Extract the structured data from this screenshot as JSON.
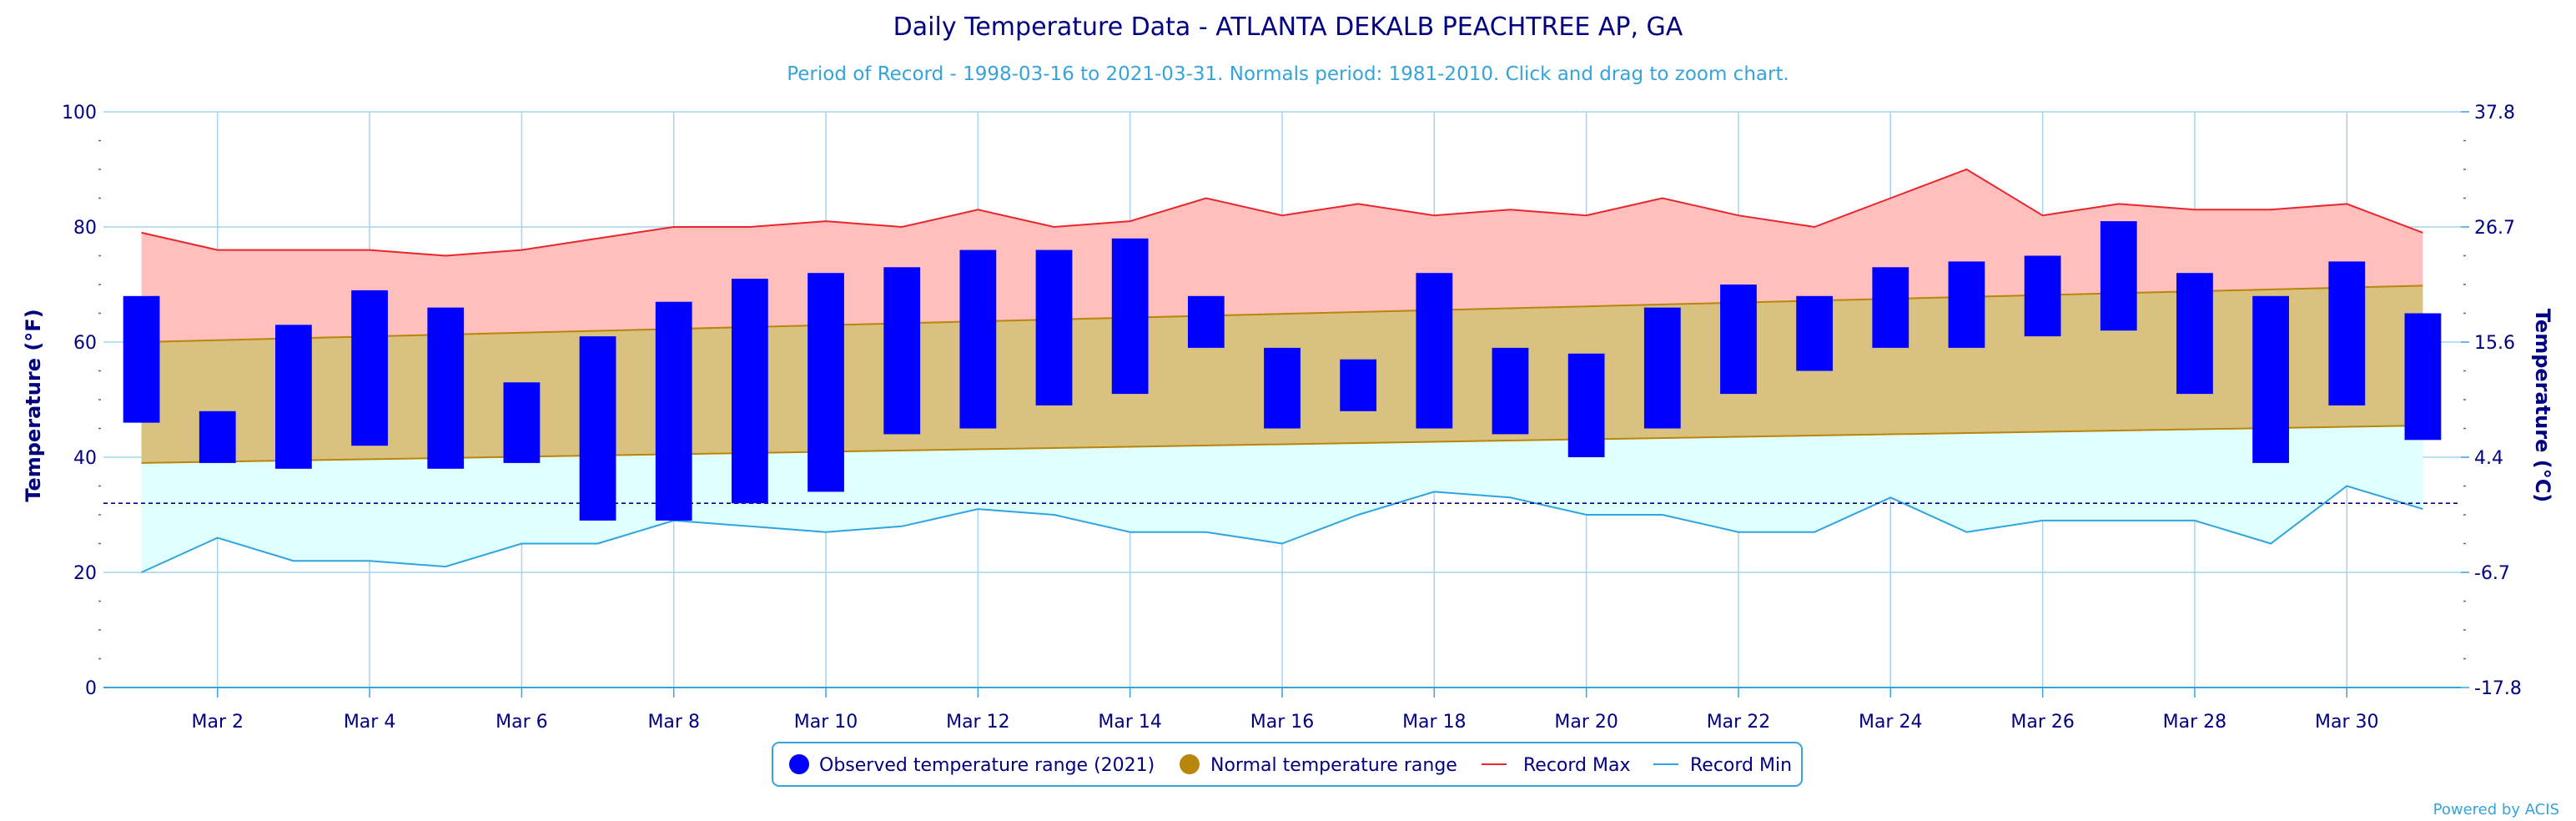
{
  "chart_data": {
    "type": "bar",
    "title": "Daily Temperature Data - ATLANTA DEKALB PEACHTREE AP, GA",
    "subtitle": "Period of Record - 1998-03-16 to 2021-03-31. Normals period: 1981-2010. Click and drag to zoom chart.",
    "ylabel": "Temperature (°F)",
    "ylabel_right": "Temperature (°C)",
    "ylim": [
      0,
      100
    ],
    "y_ticks": [
      "0",
      "20",
      "40",
      "60",
      "80",
      "100"
    ],
    "y_ticks_right": [
      "-17.8",
      "-6.7",
      "4.4",
      "15.6",
      "26.7",
      "37.8"
    ],
    "x_ticks": [
      "Mar 2",
      "Mar 4",
      "Mar 6",
      "Mar 8",
      "Mar 10",
      "Mar 12",
      "Mar 14",
      "Mar 16",
      "Mar 18",
      "Mar 20",
      "Mar 22",
      "Mar 24",
      "Mar 26",
      "Mar 28",
      "Mar 30"
    ],
    "x_tick_days": [
      2,
      4,
      6,
      8,
      10,
      12,
      14,
      16,
      18,
      20,
      22,
      24,
      26,
      28,
      30
    ],
    "days": [
      1,
      2,
      3,
      4,
      5,
      6,
      7,
      8,
      9,
      10,
      11,
      12,
      13,
      14,
      15,
      16,
      17,
      18,
      19,
      20,
      21,
      22,
      23,
      24,
      25,
      26,
      27,
      28,
      29,
      30,
      31
    ],
    "freezing_f": 32,
    "grid": true,
    "legend_position": "bottom-center",
    "series": [
      {
        "name": "Observed temperature range (2021)",
        "color": "#0000ff",
        "low": [
          46,
          39,
          38,
          42,
          38,
          39,
          29,
          29,
          32,
          34,
          44,
          45,
          49,
          51,
          59,
          45,
          48,
          45,
          44,
          40,
          45,
          51,
          55,
          59,
          59,
          61,
          62,
          51,
          39,
          49,
          43
        ],
        "high": [
          68,
          48,
          63,
          69,
          66,
          53,
          61,
          67,
          71,
          72,
          73,
          76,
          76,
          78,
          68,
          59,
          57,
          72,
          59,
          58,
          66,
          70,
          68,
          73,
          74,
          75,
          81,
          72,
          68,
          74,
          65
        ]
      },
      {
        "name": "Normal temperature range",
        "color": "#b8860b",
        "fill": "#d9c17f",
        "low_start": 39,
        "low_end": 45.5,
        "high_start": 60,
        "high_end": 69.8
      },
      {
        "name": "Record Max",
        "color": "#e8262b",
        "fill": "#ffbfbd",
        "values": [
          79,
          76,
          76,
          76,
          75,
          76,
          78,
          80,
          80,
          81,
          80,
          83,
          80,
          81,
          85,
          82,
          84,
          82,
          83,
          82,
          85,
          82,
          80,
          85,
          90,
          82,
          84,
          83,
          83,
          84,
          79
        ]
      },
      {
        "name": "Record Min",
        "color": "#2ea5e0",
        "fill": "#e0ffff",
        "values": [
          20,
          26,
          22,
          22,
          21,
          25,
          25,
          29,
          28,
          27,
          28,
          31,
          30,
          27,
          27,
          25,
          30,
          34,
          33,
          30,
          30,
          27,
          27,
          33,
          27,
          29,
          29,
          29,
          25,
          35,
          31
        ]
      }
    ]
  },
  "footer": {
    "credit": "Powered by ACIS"
  }
}
